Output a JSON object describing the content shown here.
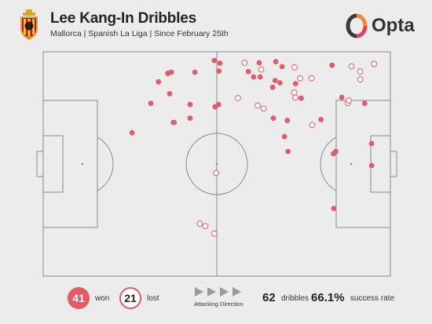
{
  "header": {
    "title": "Lee Kang-In Dribbles",
    "subtitle": "Mallorca | Spanish La Liga | Since February 25th",
    "brand": "Opta"
  },
  "colors": {
    "won": "#e45a67",
    "lost_stroke": "#e45a67",
    "pitch_line": "#8a8a8a",
    "background": "#ececec"
  },
  "icons": {
    "crest": "mallorca-crest-icon",
    "brand": "opta-logo-icon",
    "direction": "play-arrow-icon"
  },
  "footer": {
    "won_count": "41",
    "won_label": "won",
    "lost_count": "21",
    "lost_label": "lost",
    "direction_label": "Attacking Direction",
    "dribbles_count": "62",
    "dribbles_label": "dribbles",
    "success_rate": "66.1%",
    "success_label": "success rate"
  },
  "chart_data": {
    "type": "scatter",
    "pitch_length": 100,
    "pitch_width": 100,
    "attacking_direction": "left-to-right",
    "legend": [
      "won",
      "lost"
    ],
    "series": [
      {
        "name": "won",
        "points": [
          [
            50.5,
            76.5
          ],
          [
            49.5,
            75.5
          ],
          [
            62.5,
            88.8
          ],
          [
            66.1,
            84.2
          ],
          [
            66.8,
            87.2
          ],
          [
            72.7,
            85.8
          ],
          [
            74.3,
            79.3
          ],
          [
            70.3,
            69.4
          ],
          [
            69.5,
            62.2
          ],
          [
            70.5,
            55.6
          ],
          [
            80.0,
            69.8
          ],
          [
            86.0,
            79.7
          ],
          [
            92.6,
            77.0
          ],
          [
            94.6,
            59.1
          ],
          [
            94.6,
            49.3
          ],
          [
            84.3,
            55.6
          ],
          [
            83.6,
            54.6
          ],
          [
            62.2,
            95.1
          ],
          [
            60.6,
            88.8
          ],
          [
            59.1,
            91.2
          ],
          [
            83.7,
            30.2
          ],
          [
            68.8,
            93.4
          ],
          [
            68.2,
            86.2
          ],
          [
            83.2,
            94.0
          ],
          [
            66.3,
            70.4
          ],
          [
            67.0,
            95.6
          ],
          [
            49.3,
            96.1
          ],
          [
            50.9,
            94.9
          ],
          [
            50.6,
            91.4
          ],
          [
            36.4,
            81.3
          ],
          [
            37.5,
            68.5
          ],
          [
            31.0,
            77.0
          ],
          [
            42.3,
            76.5
          ],
          [
            42.3,
            70.4
          ],
          [
            25.6,
            63.9
          ],
          [
            33.2,
            86.6
          ],
          [
            36.9,
            90.9
          ],
          [
            36.0,
            90.4
          ],
          [
            43.7,
            90.9
          ],
          [
            37.7,
            68.5
          ],
          [
            35.9,
            90.4
          ]
        ]
      },
      {
        "name": "lost",
        "points": [
          [
            87.7,
            77.2
          ],
          [
            88.0,
            78.3
          ],
          [
            88.8,
            93.5
          ],
          [
            95.3,
            94.6
          ],
          [
            72.6,
            79.6
          ],
          [
            72.3,
            81.9
          ],
          [
            77.5,
            67.4
          ],
          [
            77.3,
            88.2
          ],
          [
            74.0,
            88.2
          ],
          [
            56.1,
            79.4
          ],
          [
            61.8,
            76.1
          ],
          [
            49.8,
            46.0
          ],
          [
            49.3,
            19.0
          ],
          [
            46.7,
            22.3
          ],
          [
            45.1,
            23.4
          ],
          [
            62.8,
            92.1
          ],
          [
            58.0,
            95.1
          ],
          [
            72.4,
            93.1
          ],
          [
            91.3,
            91.2
          ],
          [
            91.3,
            87.7
          ],
          [
            63.5,
            74.7
          ]
        ]
      }
    ]
  }
}
